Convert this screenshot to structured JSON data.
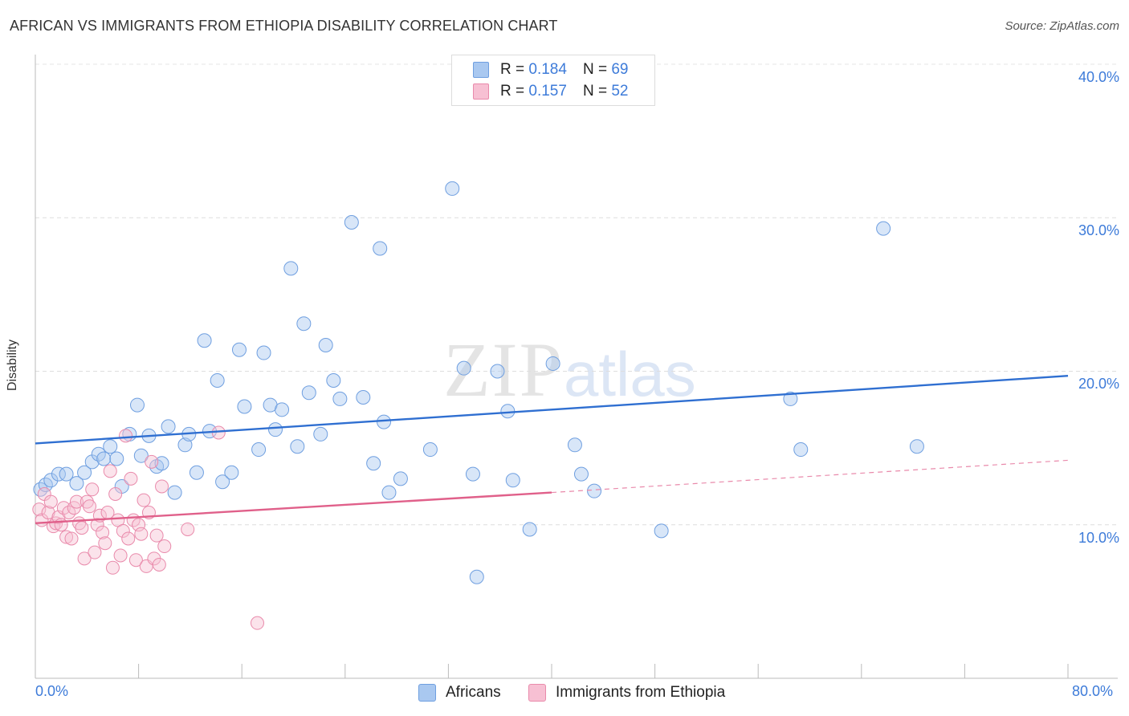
{
  "header": {
    "title": "AFRICAN VS IMMIGRANTS FROM ETHIOPIA DISABILITY CORRELATION CHART",
    "source": "Source: ZipAtlas.com"
  },
  "watermark": {
    "zip": "ZIP",
    "atlas": "atlas"
  },
  "legend": {
    "r_label": "R = ",
    "n_label": "N = ",
    "rows": [
      {
        "r": "0.184",
        "n": "69",
        "color": "#a9c8f0",
        "border": "#6f9fe0"
      },
      {
        "r": "0.157",
        "n": "52",
        "color": "#f7c0d3",
        "border": "#e98aab"
      }
    ]
  },
  "chart_data": {
    "type": "scatter",
    "title": "AFRICAN VS IMMIGRANTS FROM ETHIOPIA DISABILITY CORRELATION CHART",
    "xlabel": "",
    "ylabel": "Disability",
    "xlim": [
      0,
      80
    ],
    "ylim": [
      0,
      40
    ],
    "x_tick_labels": [
      "0.0%",
      "80.0%"
    ],
    "y_tick_labels": [
      "10.0%",
      "20.0%",
      "30.0%",
      "40.0%"
    ],
    "y_ticks": [
      10,
      20,
      30,
      40
    ],
    "grid": true,
    "legend_position": "top-center",
    "series": [
      {
        "name": "Africans",
        "fill": "rgba(169,200,240,0.45)",
        "stroke": "#6f9fe0",
        "points": [
          [
            0.4,
            12.3
          ],
          [
            0.8,
            12.6
          ],
          [
            1.2,
            12.9
          ],
          [
            1.8,
            13.3
          ],
          [
            2.4,
            13.3
          ],
          [
            3.2,
            12.7
          ],
          [
            3.8,
            13.4
          ],
          [
            4.4,
            14.1
          ],
          [
            4.9,
            14.6
          ],
          [
            5.3,
            14.3
          ],
          [
            5.8,
            15.1
          ],
          [
            6.3,
            14.3
          ],
          [
            6.7,
            12.5
          ],
          [
            7.3,
            15.9
          ],
          [
            7.9,
            17.8
          ],
          [
            8.2,
            14.5
          ],
          [
            8.8,
            15.8
          ],
          [
            9.4,
            13.8
          ],
          [
            9.8,
            14.0
          ],
          [
            10.3,
            16.4
          ],
          [
            10.8,
            12.1
          ],
          [
            11.6,
            15.2
          ],
          [
            11.9,
            15.9
          ],
          [
            12.5,
            13.4
          ],
          [
            13.1,
            22.0
          ],
          [
            13.5,
            16.1
          ],
          [
            14.1,
            19.4
          ],
          [
            14.5,
            12.8
          ],
          [
            15.2,
            13.4
          ],
          [
            15.8,
            21.4
          ],
          [
            16.2,
            17.7
          ],
          [
            17.3,
            14.9
          ],
          [
            17.7,
            21.2
          ],
          [
            18.2,
            17.8
          ],
          [
            18.6,
            16.2
          ],
          [
            19.1,
            17.5
          ],
          [
            19.8,
            26.7
          ],
          [
            20.3,
            15.1
          ],
          [
            20.8,
            23.1
          ],
          [
            21.2,
            18.6
          ],
          [
            22.1,
            15.9
          ],
          [
            22.5,
            21.7
          ],
          [
            23.1,
            19.4
          ],
          [
            23.6,
            18.2
          ],
          [
            24.5,
            29.7
          ],
          [
            25.4,
            18.3
          ],
          [
            26.2,
            14.0
          ],
          [
            26.7,
            28.0
          ],
          [
            27.0,
            16.7
          ],
          [
            27.4,
            12.1
          ],
          [
            28.3,
            13.0
          ],
          [
            30.6,
            14.9
          ],
          [
            32.3,
            31.9
          ],
          [
            33.2,
            20.2
          ],
          [
            33.9,
            13.3
          ],
          [
            34.2,
            6.6
          ],
          [
            35.8,
            20.0
          ],
          [
            36.6,
            17.4
          ],
          [
            37.0,
            12.9
          ],
          [
            38.3,
            9.7
          ],
          [
            40.1,
            20.5
          ],
          [
            41.8,
            15.2
          ],
          [
            42.3,
            13.3
          ],
          [
            43.3,
            12.2
          ],
          [
            48.5,
            9.6
          ],
          [
            58.5,
            18.2
          ],
          [
            59.3,
            14.9
          ],
          [
            65.7,
            29.3
          ],
          [
            68.3,
            15.1
          ]
        ]
      },
      {
        "name": "Immigrants from Ethiopia",
        "fill": "rgba(247,192,211,0.45)",
        "stroke": "#e98aab",
        "points": [
          [
            0.3,
            11.0
          ],
          [
            0.5,
            10.3
          ],
          [
            0.7,
            12.0
          ],
          [
            1.0,
            10.8
          ],
          [
            1.2,
            11.5
          ],
          [
            1.4,
            9.9
          ],
          [
            1.6,
            10.1
          ],
          [
            1.8,
            10.5
          ],
          [
            2.0,
            10.0
          ],
          [
            2.2,
            11.1
          ],
          [
            2.4,
            9.2
          ],
          [
            2.6,
            10.8
          ],
          [
            2.8,
            9.1
          ],
          [
            3.0,
            11.1
          ],
          [
            3.2,
            11.5
          ],
          [
            3.4,
            10.1
          ],
          [
            3.6,
            9.8
          ],
          [
            3.8,
            7.8
          ],
          [
            4.0,
            11.5
          ],
          [
            4.2,
            11.2
          ],
          [
            4.4,
            12.3
          ],
          [
            4.6,
            8.2
          ],
          [
            4.8,
            10.0
          ],
          [
            5.0,
            10.6
          ],
          [
            5.2,
            9.5
          ],
          [
            5.4,
            8.8
          ],
          [
            5.6,
            10.8
          ],
          [
            5.8,
            13.5
          ],
          [
            6.0,
            7.2
          ],
          [
            6.2,
            12.0
          ],
          [
            6.4,
            10.3
          ],
          [
            6.6,
            8.0
          ],
          [
            6.8,
            9.6
          ],
          [
            7.0,
            15.8
          ],
          [
            7.2,
            9.1
          ],
          [
            7.4,
            13.0
          ],
          [
            7.6,
            10.3
          ],
          [
            7.8,
            7.7
          ],
          [
            8.0,
            10.0
          ],
          [
            8.2,
            9.4
          ],
          [
            8.4,
            11.6
          ],
          [
            8.6,
            7.3
          ],
          [
            8.8,
            10.8
          ],
          [
            9.0,
            14.1
          ],
          [
            9.2,
            7.8
          ],
          [
            9.4,
            9.3
          ],
          [
            9.6,
            7.4
          ],
          [
            9.8,
            12.5
          ],
          [
            10.0,
            8.6
          ],
          [
            11.8,
            9.7
          ],
          [
            14.2,
            16.0
          ],
          [
            17.2,
            3.6
          ]
        ]
      }
    ],
    "trendlines": [
      {
        "series": "Africans",
        "x": [
          0,
          80
        ],
        "y": [
          15.3,
          19.7
        ],
        "color": "#2f6fd1",
        "style": "solid"
      },
      {
        "series": "Immigrants from Ethiopia",
        "x": [
          0,
          40
        ],
        "y": [
          10.1,
          12.1
        ],
        "color": "#e0608a",
        "style": "solid"
      },
      {
        "series": "Immigrants from Ethiopia",
        "x": [
          40,
          80
        ],
        "y": [
          12.1,
          14.2
        ],
        "color": "#e98aab",
        "style": "dashed"
      }
    ]
  }
}
